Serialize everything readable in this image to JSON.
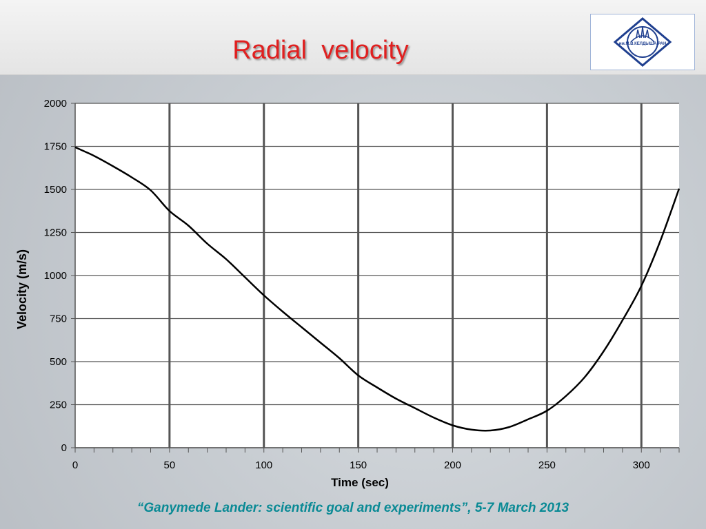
{
  "slide": {
    "title": "Radial  velocity",
    "footer": "“Ganymede Lander: scientific goal and experiments”, 5-7 March 2013"
  },
  "logo": {
    "icon": "institute-emblem-icon",
    "text": "им.М.В.КЕЛДЫША РАН"
  },
  "chart_data": {
    "type": "line",
    "title": "",
    "xlabel": "Time (sec)",
    "ylabel": "Velocity (m/s)",
    "xlim": [
      0,
      320
    ],
    "ylim": [
      0,
      2000
    ],
    "x_ticks": [
      0,
      50,
      100,
      150,
      200,
      250,
      300
    ],
    "y_ticks": [
      0,
      250,
      500,
      750,
      1000,
      1250,
      1500,
      1750,
      2000
    ],
    "grid": true,
    "legend": "none",
    "line_color": "#000000",
    "series": [
      {
        "x": [
          0,
          10,
          20,
          30,
          40,
          50,
          60,
          70,
          80,
          90,
          100,
          110,
          120,
          130,
          140,
          150,
          160,
          170,
          180,
          190,
          200,
          210,
          220,
          230,
          240,
          250,
          260,
          270,
          280,
          290,
          300,
          310,
          320
        ],
        "y": [
          1745,
          1695,
          1635,
          1570,
          1495,
          1375,
          1290,
          1185,
          1095,
          990,
          885,
          790,
          700,
          610,
          520,
          420,
          350,
          285,
          230,
          175,
          130,
          105,
          100,
          120,
          165,
          215,
          300,
          410,
          560,
          740,
          940,
          1200,
          1505
        ]
      }
    ]
  }
}
